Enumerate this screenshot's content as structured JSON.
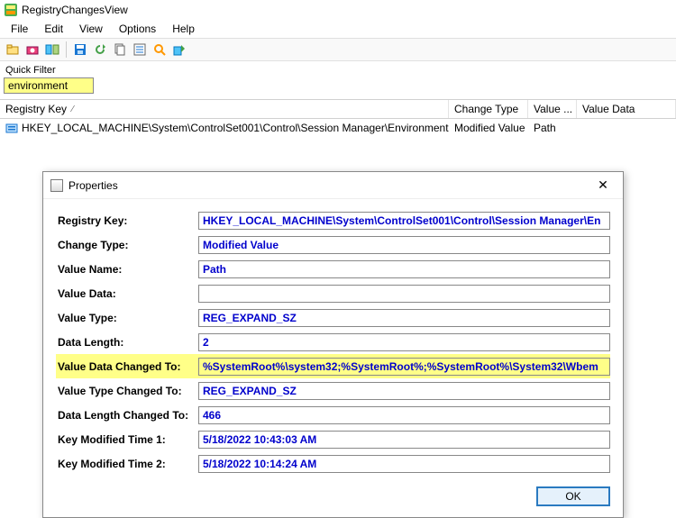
{
  "window": {
    "title": "RegistryChangesView"
  },
  "menu": {
    "items": [
      "File",
      "Edit",
      "View",
      "Options",
      "Help"
    ]
  },
  "quickfilter": {
    "label": "Quick Filter",
    "value": "environment"
  },
  "grid": {
    "columns": [
      "Registry Key",
      "Change Type",
      "Value ...",
      "Value Data"
    ],
    "rows": [
      {
        "key": "HKEY_LOCAL_MACHINE\\System\\ControlSet001\\Control\\Session Manager\\Environment",
        "change": "Modified Value",
        "valname": "Path",
        "valdata": ""
      }
    ]
  },
  "dialog": {
    "title": "Properties",
    "rows": [
      {
        "label": "Registry Key:",
        "value": "HKEY_LOCAL_MACHINE\\System\\ControlSet001\\Control\\Session Manager\\En",
        "hl": false
      },
      {
        "label": "Change Type:",
        "value": "Modified Value",
        "hl": false
      },
      {
        "label": "Value Name:",
        "value": "Path",
        "hl": false
      },
      {
        "label": "Value Data:",
        "value": "",
        "hl": false
      },
      {
        "label": "Value Type:",
        "value": "REG_EXPAND_SZ",
        "hl": false
      },
      {
        "label": "Data Length:",
        "value": "2",
        "hl": false
      },
      {
        "label": "Value Data Changed To:",
        "value": "%SystemRoot%\\system32;%SystemRoot%;%SystemRoot%\\System32\\Wbem",
        "hl": true
      },
      {
        "label": "Value Type Changed To:",
        "value": "REG_EXPAND_SZ",
        "hl": false
      },
      {
        "label": "Data Length Changed To:",
        "value": "466",
        "hl": false
      },
      {
        "label": "Key Modified Time 1:",
        "value": "5/18/2022 10:43:03 AM",
        "hl": false
      },
      {
        "label": "Key Modified Time 2:",
        "value": "5/18/2022 10:14:24 AM",
        "hl": false
      }
    ],
    "ok": "OK"
  },
  "colors": {
    "highlight": "#ffff88",
    "fieldText": "#0000cc",
    "okBorder": "#2a7ac0",
    "okBg": "#e5f1fb"
  }
}
